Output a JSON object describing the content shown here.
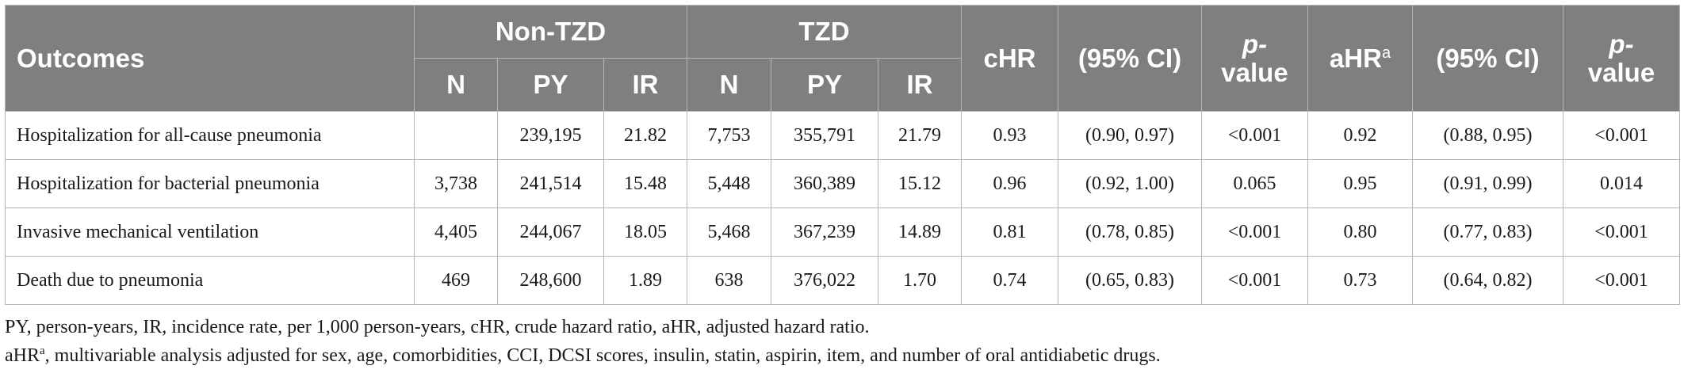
{
  "table": {
    "headers": {
      "outcomes": "Outcomes",
      "group_non_tzd": "Non-TZD",
      "group_tzd": "TZD",
      "chr": "cHR",
      "ci1": "(95% CI)",
      "pvalue1_line1": "p-",
      "pvalue1_line2": "value",
      "ahr": "aHR",
      "ahr_sup": "a",
      "ci2": "(95% CI)",
      "pvalue2_line1": "p-",
      "pvalue2_line2": "value",
      "n": "N",
      "py": "PY",
      "ir": "IR"
    },
    "rows": [
      {
        "outcome": "Hospitalization for all-cause pneumonia",
        "non_n": "",
        "non_py": "239,195",
        "non_ir": "21.82",
        "tzd_n": "7,753",
        "tzd_py": "355,791",
        "tzd_ir": "21.79",
        "chr": "0.93",
        "chr_ci": "(0.90, 0.97)",
        "chr_p": "<0.001",
        "ahr": "0.92",
        "ahr_ci": "(0.88, 0.95)",
        "ahr_p": "<0.001"
      },
      {
        "outcome": "Hospitalization for bacterial pneumonia",
        "non_n": "3,738",
        "non_py": "241,514",
        "non_ir": "15.48",
        "tzd_n": "5,448",
        "tzd_py": "360,389",
        "tzd_ir": "15.12",
        "chr": "0.96",
        "chr_ci": "(0.92, 1.00)",
        "chr_p": "0.065",
        "ahr": "0.95",
        "ahr_ci": "(0.91, 0.99)",
        "ahr_p": "0.014"
      },
      {
        "outcome": "Invasive mechanical ventilation",
        "non_n": "4,405",
        "non_py": "244,067",
        "non_ir": "18.05",
        "tzd_n": "5,468",
        "tzd_py": "367,239",
        "tzd_ir": "14.89",
        "chr": "0.81",
        "chr_ci": "(0.78, 0.85)",
        "chr_p": "<0.001",
        "ahr": "0.80",
        "ahr_ci": "(0.77, 0.83)",
        "ahr_p": "<0.001"
      },
      {
        "outcome": "Death due to pneumonia",
        "non_n": "469",
        "non_py": "248,600",
        "non_ir": "1.89",
        "tzd_n": "638",
        "tzd_py": "376,022",
        "tzd_ir": "1.70",
        "chr": "0.74",
        "chr_ci": "(0.65, 0.83)",
        "chr_p": "<0.001",
        "ahr": "0.73",
        "ahr_ci": "(0.64, 0.82)",
        "ahr_p": "<0.001"
      }
    ]
  },
  "footnotes": {
    "line1": "PY, person-years, IR, incidence rate, per 1,000 person-years, cHR, crude hazard ratio, aHR, adjusted hazard ratio.",
    "line2_prefix": "aHR",
    "line2_sup": "a",
    "line2_text": ", multivariable analysis adjusted for sex, age, comorbidities, CCI, DCSI scores, insulin, statin, aspirin, item, and number of oral antidiabetic drugs."
  },
  "colors": {
    "header_bg": "#7f7f7f",
    "header_text": "#ffffff",
    "grid_line": "#b5b5b5",
    "body_text": "#1a1a1a"
  }
}
